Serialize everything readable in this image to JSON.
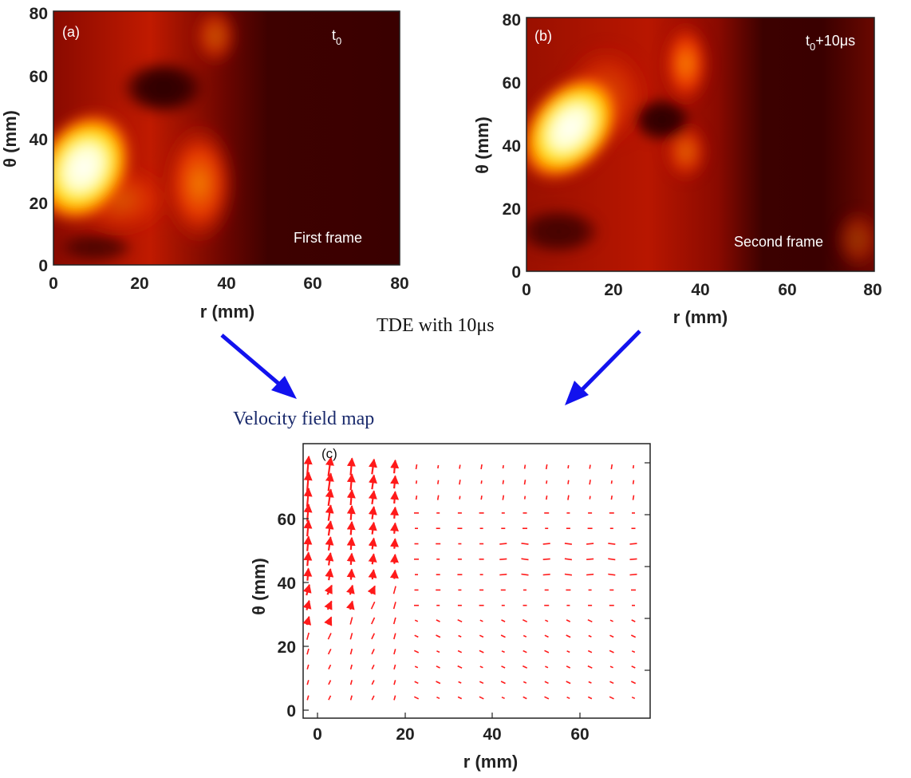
{
  "panel_a": {
    "letter": "(a)",
    "time_base": "t",
    "time_sub": "0",
    "time_suffix": "",
    "frame_label": "First frame",
    "x_label": "r (mm)",
    "y_label": "θ (mm)",
    "x_ticks": [
      "0",
      "20",
      "40",
      "60",
      "80"
    ],
    "y_ticks": [
      "0",
      "20",
      "40",
      "60",
      "80"
    ]
  },
  "panel_b": {
    "letter": "(b)",
    "time_base": "t",
    "time_sub": "0",
    "time_suffix": "+10μs",
    "frame_label": "Second frame",
    "x_label": "r (mm)",
    "y_label": "θ (mm)",
    "x_ticks": [
      "0",
      "20",
      "40",
      "60",
      "80"
    ],
    "y_ticks": [
      "0",
      "20",
      "40",
      "60",
      "80"
    ]
  },
  "tde_label": "TDE with 10μs",
  "velocity_label": "Velocity field map",
  "panel_c": {
    "letter": "(c)",
    "x_label": "r (mm)",
    "y_label": "θ (mm)",
    "x_ticks": [
      "0",
      "20",
      "40",
      "60"
    ],
    "y_ticks": [
      "0",
      "20",
      "40",
      "60"
    ]
  },
  "colors": {
    "arrow": "#1212ee",
    "quiver": "#ff1a1a",
    "text_blue": "#1a2a6c",
    "axis": "#222222"
  }
}
